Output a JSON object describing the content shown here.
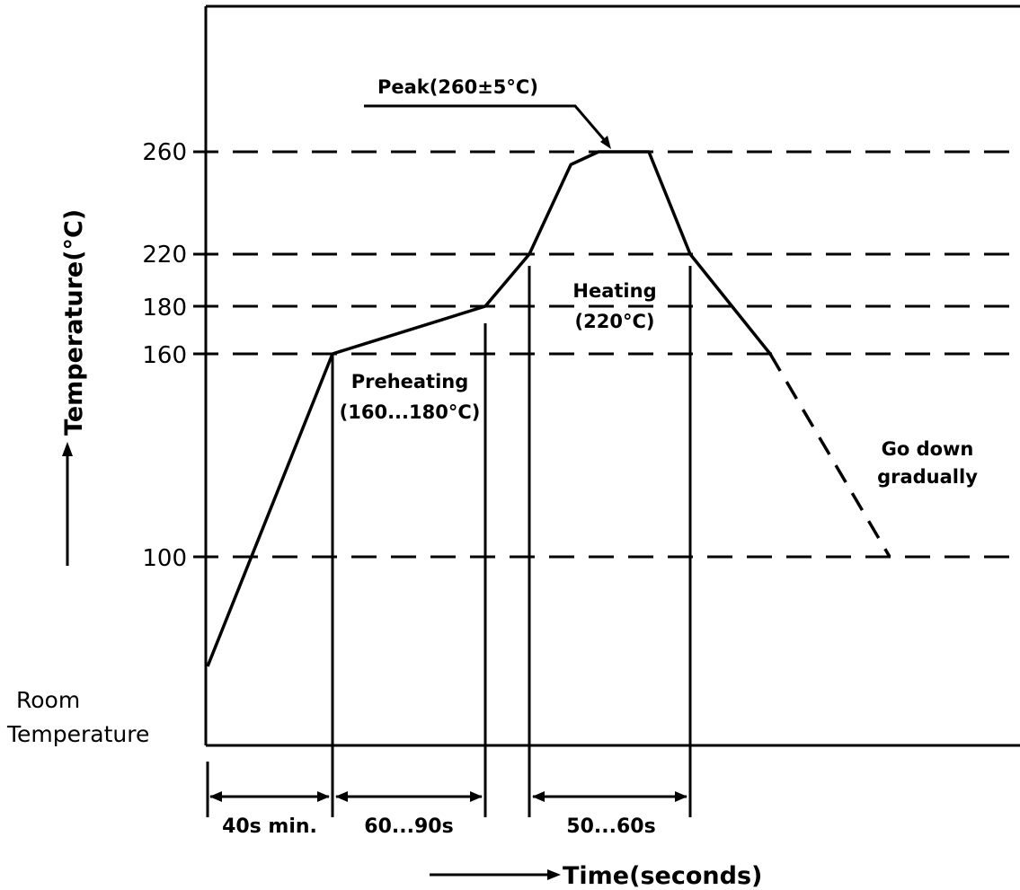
{
  "chart_data": {
    "type": "line",
    "title": "",
    "xlabel": "Time(seconds)",
    "ylabel": "Temperature(°C)",
    "y_ticks": [
      "260",
      "220",
      "180",
      "160",
      "100"
    ],
    "y_tick_values": [
      260,
      220,
      180,
      160,
      100
    ],
    "room_temperature_label": "Room\nTemperature",
    "room_temperature_label_lines": [
      "Room",
      "Temperature"
    ],
    "profile_series": {
      "name": "",
      "points": [
        {
          "x": 0,
          "y": 25
        },
        {
          "x": 40,
          "y": 160
        },
        {
          "x": 125,
          "y": 180
        },
        {
          "x": 150,
          "y": 220
        },
        {
          "x": 165,
          "y": 255
        },
        {
          "x": 175,
          "y": 260
        },
        {
          "x": 200,
          "y": 260
        },
        {
          "x": 225,
          "y": 220
        },
        {
          "x": 260,
          "y": 160
        }
      ],
      "cooling_dashed": [
        {
          "x": 260,
          "y": 160
        },
        {
          "x": 320,
          "y": 100
        }
      ]
    },
    "reference_lines": [
      260,
      220,
      180,
      160,
      100
    ],
    "annotations": {
      "peak": "Peak(260±5°C)",
      "preheating": [
        "Preheating",
        "(160...180°C)"
      ],
      "heating": [
        "Heating",
        "(220°C)"
      ],
      "go_down": [
        "Go down",
        "gradually"
      ]
    },
    "durations": [
      "40s min.",
      "60...90s",
      "50...60s"
    ],
    "grid": false,
    "legend": "none"
  }
}
